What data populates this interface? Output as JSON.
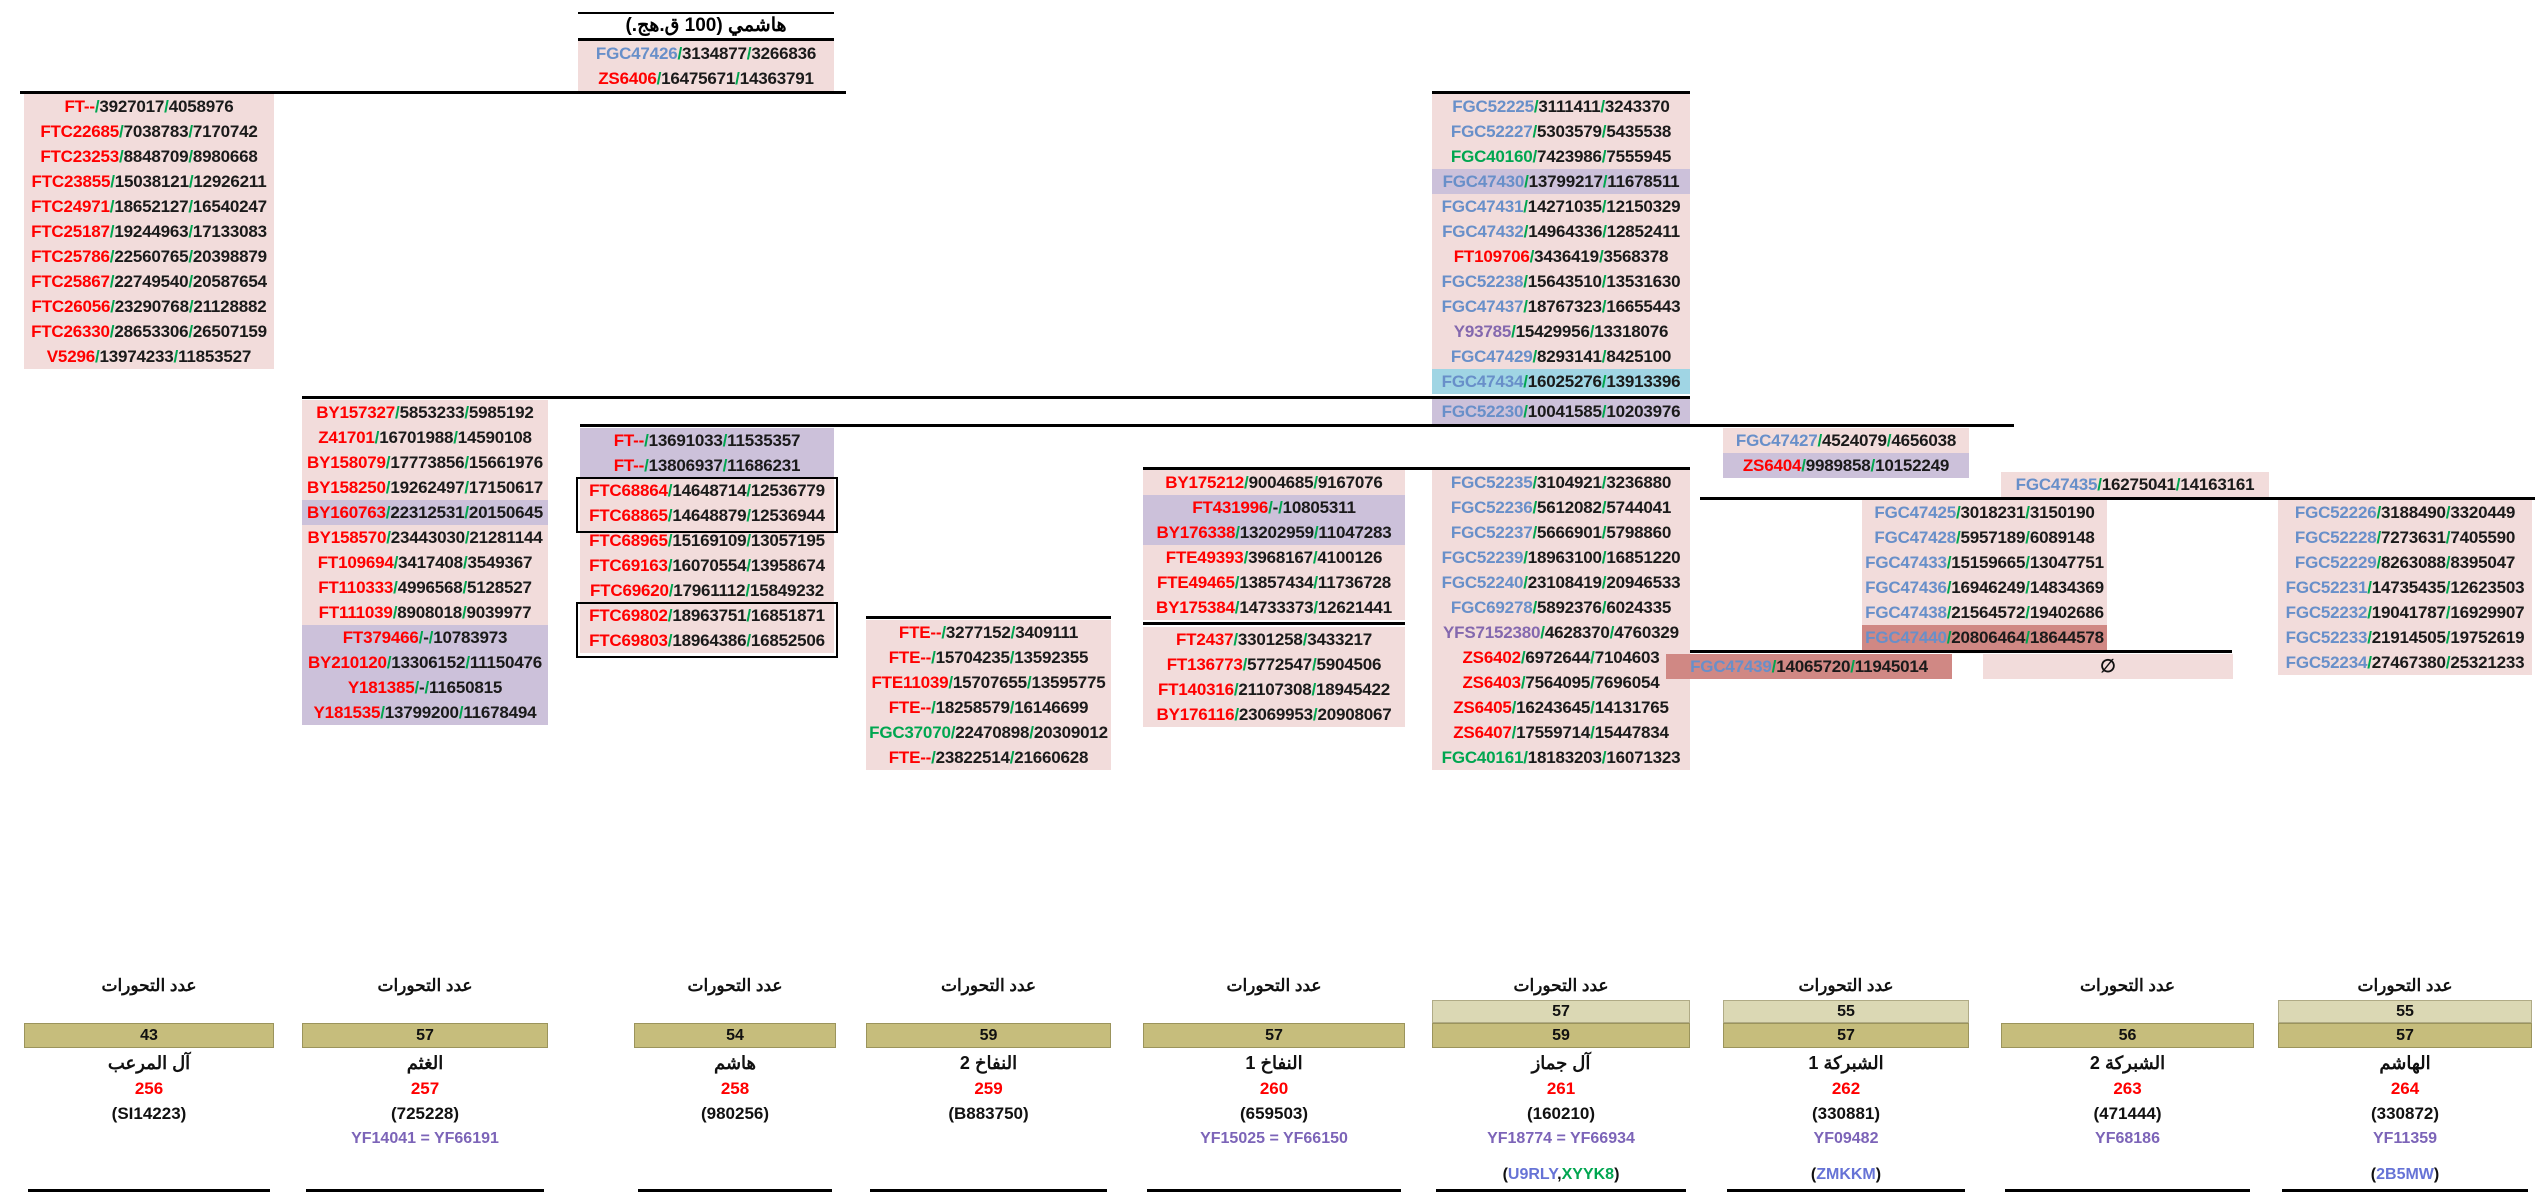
{
  "title": {
    "text": "هاشمي (100 ق.هج.)"
  },
  "empty_set": "∅",
  "columns": {
    "troot": {
      "rows": [
        [
          "FGC47426",
          "b",
          "3134877",
          "3266836",
          ""
        ],
        [
          "ZS6406",
          "r",
          "16475671",
          "14363791",
          ""
        ]
      ]
    },
    "c1": {
      "rows": [
        [
          "FT--",
          "r",
          "3927017",
          "4058976",
          ""
        ],
        [
          "FTC22685",
          "r",
          "7038783",
          "7170742",
          ""
        ],
        [
          "FTC23253",
          "r",
          "8848709",
          "8980668",
          ""
        ],
        [
          "FTC23855",
          "r",
          "15038121",
          "12926211",
          ""
        ],
        [
          "FTC24971",
          "r",
          "18652127",
          "16540247",
          ""
        ],
        [
          "FTC25187",
          "r",
          "19244963",
          "17133083",
          ""
        ],
        [
          "FTC25786",
          "r",
          "22560765",
          "20398879",
          ""
        ],
        [
          "FTC25867",
          "r",
          "22749540",
          "20587654",
          ""
        ],
        [
          "FTC26056",
          "r",
          "23290768",
          "21128882",
          ""
        ],
        [
          "FTC26330",
          "r",
          "28653306",
          "26507159",
          ""
        ],
        [
          "V5296",
          "r",
          "13974233",
          "11853527",
          ""
        ]
      ]
    },
    "c2": {
      "rows": [
        [
          "BY157327",
          "r",
          "5853233",
          "5985192",
          ""
        ],
        [
          "Z41701",
          "r",
          "16701988",
          "14590108",
          ""
        ],
        [
          "BY158079",
          "r",
          "17773856",
          "15661976",
          ""
        ],
        [
          "BY158250",
          "r",
          "19262497",
          "17150617",
          ""
        ],
        [
          "BY160763",
          "r",
          "22312531",
          "20150645",
          "pu"
        ],
        [
          "BY158570",
          "r",
          "23443030",
          "21281144",
          ""
        ],
        [
          "FT109694",
          "r",
          "3417408",
          "3549367",
          ""
        ],
        [
          "FT110333",
          "r",
          "4996568",
          "5128527",
          ""
        ],
        [
          "FT111039",
          "r",
          "8908018",
          "9039977",
          ""
        ],
        [
          "FT379466",
          "r",
          "-",
          "10783973",
          "pu"
        ],
        [
          "BY210120",
          "r",
          "13306152",
          "11150476",
          "pu"
        ],
        [
          "Y181385",
          "r",
          "-",
          "11650815",
          "pu"
        ],
        [
          "Y181535",
          "r",
          "13799200",
          "11678494",
          "pu"
        ]
      ]
    },
    "c3": {
      "rows": [
        [
          "FT--",
          "r",
          "13691033",
          "11535357",
          "pu"
        ],
        [
          "FT--",
          "r",
          "13806937",
          "11686231",
          "pu"
        ],
        [
          "FTC68864",
          "r",
          "14648714",
          "12536779",
          ""
        ],
        [
          "FTC68865",
          "r",
          "14648879",
          "12536944",
          ""
        ],
        [
          "FTC68965",
          "r",
          "15169109",
          "13057195",
          ""
        ],
        [
          "FTC69163",
          "r",
          "16070554",
          "13958674",
          ""
        ],
        [
          "FTC69620",
          "r",
          "17961112",
          "15849232",
          ""
        ],
        [
          "FTC69802",
          "r",
          "18963751",
          "16851871",
          ""
        ],
        [
          "FTC69803",
          "r",
          "18964386",
          "16852506",
          ""
        ]
      ]
    },
    "c4": {
      "rows": [
        [
          "FTE--",
          "r",
          "3277152",
          "3409111",
          ""
        ],
        [
          "FTE--",
          "r",
          "15704235",
          "13592355",
          ""
        ],
        [
          "FTE11039",
          "r",
          "15707655",
          "13595775",
          ""
        ],
        [
          "FTE--",
          "r",
          "18258579",
          "16146699",
          ""
        ],
        [
          "FGC37070",
          "g",
          "22470898",
          "20309012",
          ""
        ],
        [
          "FTE--",
          "r",
          "23822514",
          "21660628",
          ""
        ]
      ]
    },
    "c5top": {
      "rows": [
        [
          "BY175212",
          "r",
          "9004685",
          "9167076",
          ""
        ],
        [
          "FT431996",
          "r",
          "-",
          "10805311",
          "pu"
        ],
        [
          "BY176338",
          "r",
          "13202959",
          "11047283",
          "pu"
        ],
        [
          "FTE49393",
          "r",
          "3968167",
          "4100126",
          ""
        ],
        [
          "FTE49465",
          "r",
          "13857434",
          "11736728",
          ""
        ],
        [
          "BY175384",
          "r",
          "14733373",
          "12621441",
          ""
        ]
      ]
    },
    "c5bot": {
      "rows": [
        [
          "FT2437",
          "r",
          "3301258",
          "3433217",
          ""
        ],
        [
          "FT136773",
          "r",
          "5772547",
          "5904506",
          ""
        ],
        [
          "FT140316",
          "r",
          "21107308",
          "18945422",
          ""
        ],
        [
          "BY176116",
          "r",
          "23069953",
          "20908067",
          ""
        ]
      ]
    },
    "c6top": {
      "rows": [
        [
          "FGC52225",
          "b",
          "3111411",
          "3243370",
          ""
        ],
        [
          "FGC52227",
          "b",
          "5303579",
          "5435538",
          ""
        ],
        [
          "FGC40160",
          "g",
          "7423986",
          "7555945",
          ""
        ],
        [
          "FGC47430",
          "b",
          "13799217",
          "11678511",
          "pu"
        ],
        [
          "FGC47431",
          "b",
          "14271035",
          "12150329",
          ""
        ],
        [
          "FGC47432",
          "b",
          "14964336",
          "12852411",
          ""
        ],
        [
          "FT109706",
          "r",
          "3436419",
          "3568378",
          ""
        ],
        [
          "FGC52238",
          "b",
          "15643510",
          "13531630",
          ""
        ],
        [
          "FGC47437",
          "b",
          "18767323",
          "16655443",
          ""
        ],
        [
          "Y93785",
          "p",
          "15429956",
          "13318076",
          ""
        ],
        [
          "FGC47429",
          "b",
          "8293141",
          "8425100",
          ""
        ],
        [
          "FGC47434",
          "b",
          "16025276",
          "13913396",
          "cy"
        ]
      ]
    },
    "c6mid": {
      "rows": [
        [
          "FGC52230",
          "b",
          "10041585",
          "10203976",
          "pu"
        ]
      ]
    },
    "c6low": {
      "rows": [
        [
          "FGC52235",
          "b",
          "3104921",
          "3236880",
          ""
        ],
        [
          "FGC52236",
          "b",
          "5612082",
          "5744041",
          ""
        ],
        [
          "FGC52237",
          "b",
          "5666901",
          "5798860",
          ""
        ],
        [
          "FGC52239",
          "b",
          "18963100",
          "16851220",
          ""
        ],
        [
          "FGC52240",
          "b",
          "23108419",
          "20946533",
          ""
        ],
        [
          "FGC69278",
          "b",
          "5892376",
          "6024335",
          ""
        ],
        [
          "YFS7152380",
          "p",
          "4628370",
          "4760329",
          ""
        ],
        [
          "ZS6402",
          "r",
          "6972644",
          "7104603",
          ""
        ],
        [
          "ZS6403",
          "r",
          "7564095",
          "7696054",
          ""
        ],
        [
          "ZS6405",
          "r",
          "16243645",
          "14131765",
          ""
        ],
        [
          "ZS6407",
          "r",
          "17559714",
          "15447834",
          ""
        ],
        [
          "FGC40161",
          "g",
          "18183203",
          "16071323",
          ""
        ]
      ]
    },
    "c7pair": {
      "rows": [
        [
          "FGC47427",
          "b",
          "4524079",
          "4656038",
          ""
        ],
        [
          "ZS6404",
          "r",
          "9989858",
          "10152249",
          "pu"
        ]
      ]
    },
    "c8head": {
      "rows": [
        [
          "FGC47435",
          "b",
          "16275041",
          "14163161",
          ""
        ]
      ]
    },
    "c8": {
      "rows": [
        [
          "FGC47425",
          "b",
          "3018231",
          "3150190",
          ""
        ],
        [
          "FGC47428",
          "b",
          "5957189",
          "6089148",
          ""
        ],
        [
          "FGC47433",
          "b",
          "15159665",
          "13047751",
          ""
        ],
        [
          "FGC47436",
          "b",
          "16946249",
          "14834369",
          ""
        ],
        [
          "FGC47438",
          "b",
          "21564572",
          "19402686",
          ""
        ],
        [
          "FGC47440",
          "b",
          "20806464",
          "18644578",
          "sa"
        ]
      ]
    },
    "c8tail": {
      "rows": [
        [
          "FGC47439",
          "b",
          "14065720",
          "11945014",
          "sa"
        ]
      ]
    },
    "c9": {
      "rows": [
        [
          "FGC52226",
          "b",
          "3188490",
          "3320449",
          ""
        ],
        [
          "FGC52228",
          "b",
          "7273631",
          "7405590",
          ""
        ],
        [
          "FGC52229",
          "b",
          "8263088",
          "8395047",
          ""
        ],
        [
          "FGC52231",
          "b",
          "14735435",
          "12623503",
          ""
        ],
        [
          "FGC52232",
          "b",
          "19041787",
          "16929907",
          ""
        ],
        [
          "FGC52233",
          "b",
          "21914505",
          "19752619",
          ""
        ],
        [
          "FGC52234",
          "b",
          "27467380",
          "25321233",
          ""
        ]
      ]
    }
  },
  "footers": [
    {
      "label": "عدد التحورات",
      "count_top": null,
      "count": "43",
      "name": "آل المرعب",
      "serial": "256",
      "id": "(SI14223)",
      "yf": null,
      "codes": null
    },
    {
      "label": "عدد التحورات",
      "count_top": null,
      "count": "57",
      "name": "الغثم",
      "serial": "257",
      "id": "(725228)",
      "yf": "YF14041 = YF66191",
      "codes": null
    },
    {
      "label": "عدد التحورات",
      "count_top": null,
      "count": "54",
      "name": "هاشم",
      "serial": "258",
      "id": "(980256)",
      "yf": null,
      "codes": null
    },
    {
      "label": "عدد التحورات",
      "count_top": null,
      "count": "59",
      "name": "النفاخ 2",
      "serial": "259",
      "id": "(B883750)",
      "yf": null,
      "codes": null
    },
    {
      "label": "عدد التحورات",
      "count_top": null,
      "count": "57",
      "name": "النفاخ 1",
      "serial": "260",
      "id": "(659503)",
      "yf": "YF15025 = YF66150",
      "codes": null
    },
    {
      "label": "عدد التحورات",
      "count_top": "57",
      "count": "59",
      "name": "آل جماز",
      "serial": "261",
      "id": "(160210)",
      "yf": "YF18774 = YF66934",
      "codes": [
        [
          "(",
          "k"
        ],
        [
          "U9RLY",
          "bl"
        ],
        [
          ",",
          "k"
        ],
        [
          "XYYK8",
          "gr"
        ],
        [
          ")",
          "k"
        ]
      ]
    },
    {
      "label": "عدد التحورات",
      "count_top": "55",
      "count": "57",
      "name": "الشبركة 1",
      "serial": "262",
      "id": "(330881)",
      "yf": "YF09482",
      "codes": [
        [
          "(",
          "k"
        ],
        [
          "ZMKKM",
          "bl"
        ],
        [
          ")",
          "k"
        ]
      ]
    },
    {
      "label": "عدد التحورات",
      "count_top": null,
      "count": "56",
      "name": "الشبركة 2",
      "serial": "263",
      "id": "(471444)",
      "yf": "YF68186",
      "codes": null
    },
    {
      "label": "عدد التحورات",
      "count_top": "55",
      "count": "57",
      "name": "الهاشم",
      "serial": "264",
      "id": "(330872)",
      "yf": "YF11359",
      "codes": [
        [
          "(",
          "k"
        ],
        [
          "2B5MW",
          "bl"
        ],
        [
          ")",
          "k"
        ]
      ]
    }
  ]
}
